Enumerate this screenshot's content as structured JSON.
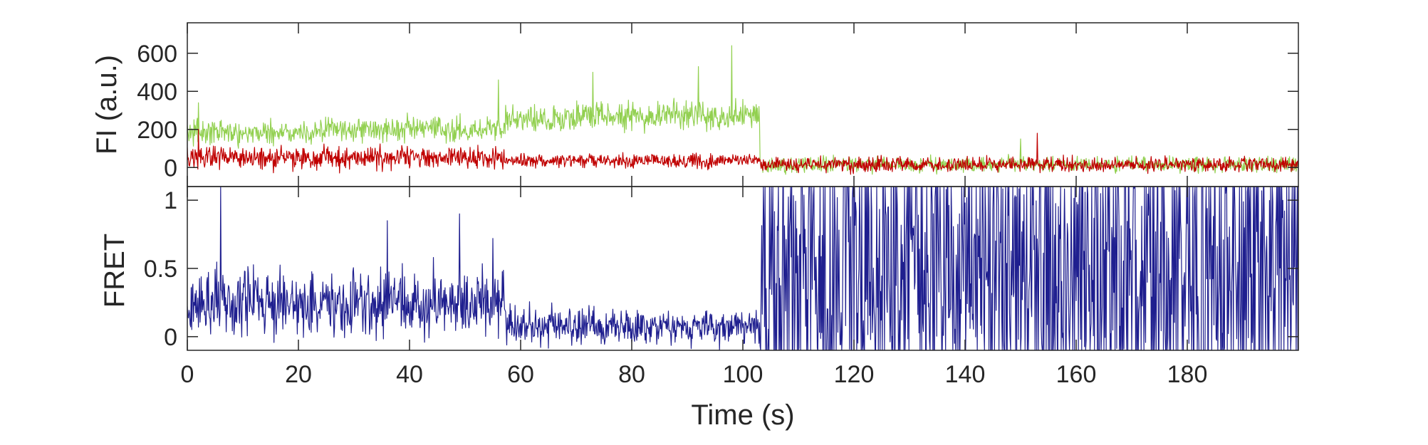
{
  "figure": {
    "background": "#ffffff",
    "axis_color": "#262626"
  },
  "chart_data": [
    {
      "type": "line",
      "panel": "top",
      "xlabel": "",
      "ylabel": "FI (a.u.)",
      "xlim": [
        0,
        200
      ],
      "ylim": [
        -100,
        760
      ],
      "yticks": [
        0,
        200,
        400,
        600
      ],
      "ytick_labels": [
        "0",
        "200",
        "400",
        "600"
      ],
      "grid": false,
      "legend": "none",
      "sample_interval_s": 0.1,
      "series": [
        {
          "color": "#92d050",
          "linewidth": 1.2,
          "segments": [
            {
              "x": [
                0,
                24
              ],
              "mean": 185,
              "noise": 50
            },
            {
              "x": [
                24,
                57
              ],
              "mean": 200,
              "noise": 50
            },
            {
              "x": [
                57,
                70
              ],
              "mean": 255,
              "noise": 55
            },
            {
              "x": [
                70,
                103
              ],
              "mean": 275,
              "noise": 60
            },
            {
              "x": [
                103,
                200
              ],
              "mean": 15,
              "noise": 30
            }
          ],
          "peaks": [
            {
              "x": 98,
              "y": 640
            },
            {
              "x": 92,
              "y": 530
            },
            {
              "x": 73,
              "y": 500
            },
            {
              "x": 56,
              "y": 460
            },
            {
              "x": 2,
              "y": 340
            },
            {
              "x": 150,
              "y": 150
            }
          ]
        },
        {
          "color": "#c00000",
          "linewidth": 1.2,
          "segments": [
            {
              "x": [
                0,
                57
              ],
              "mean": 50,
              "noise": 45
            },
            {
              "x": [
                57,
                103
              ],
              "mean": 35,
              "noise": 28
            },
            {
              "x": [
                103,
                200
              ],
              "mean": 15,
              "noise": 30
            }
          ],
          "peaks": [
            {
              "x": 2,
              "y": 200
            },
            {
              "x": 153,
              "y": 180
            }
          ]
        }
      ]
    },
    {
      "type": "line",
      "panel": "bottom",
      "xlabel": "Time (s)",
      "ylabel": "FRET",
      "xlim": [
        0,
        200
      ],
      "ylim": [
        -0.1,
        1.1
      ],
      "xticks": [
        0,
        20,
        40,
        60,
        80,
        100,
        120,
        140,
        160,
        180
      ],
      "xtick_labels": [
        "0",
        "20",
        "40",
        "60",
        "80",
        "100",
        "120",
        "140",
        "160",
        "180"
      ],
      "yticks": [
        0,
        0.5,
        1
      ],
      "ytick_labels": [
        "0",
        "0.5",
        "1"
      ],
      "grid": false,
      "legend": "none",
      "sample_interval_s": 0.1,
      "series": [
        {
          "color": "#1f1f8f",
          "linewidth": 1.2,
          "segments": [
            {
              "x": [
                0,
                57
              ],
              "mean": 0.25,
              "noise": 0.18
            },
            {
              "x": [
                57,
                103
              ],
              "mean": 0.08,
              "noise": 0.1
            },
            {
              "x": [
                103,
                200
              ],
              "mean": 0.5,
              "noise": 1.1
            }
          ],
          "peaks": [
            {
              "x": 6,
              "y": 1.1
            },
            {
              "x": 49,
              "y": 0.9
            },
            {
              "x": 36,
              "y": 0.85
            },
            {
              "x": 55,
              "y": 0.72
            }
          ]
        }
      ]
    }
  ]
}
